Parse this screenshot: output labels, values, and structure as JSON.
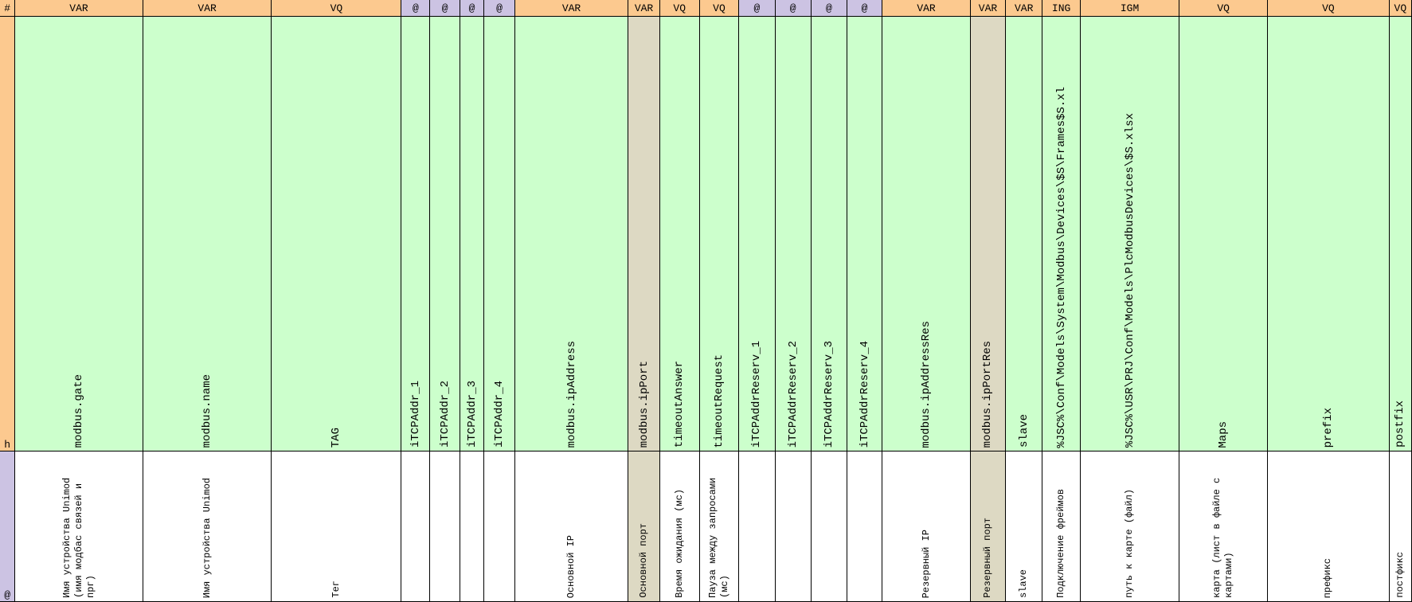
{
  "row_labels": [
    "#",
    "h",
    "@"
  ],
  "columns": [
    {
      "type": "VAR",
      "field": "modbus.gate",
      "description": "Имя устройства Unimod (имя модбас связей и прг)"
    },
    {
      "type": "VAR",
      "field": "modbus.name",
      "description": "Имя устройства Unimod"
    },
    {
      "type": "VQ",
      "field": "TAG",
      "description": "Тег"
    },
    {
      "type": "@",
      "field": "iTCPAddr_1"
    },
    {
      "type": "@",
      "field": "iTCPAddr_2"
    },
    {
      "type": "@",
      "field": "iTCPAddr_3"
    },
    {
      "type": "@",
      "field": "iTCPAddr_4"
    },
    {
      "type": "VAR",
      "field": "modbus.ipAddress",
      "description": "Основной IP"
    },
    {
      "type": "VAR",
      "field": "modbus.ipPort",
      "description": "Основной порт",
      "fill": "#ddd9c3"
    },
    {
      "type": "VQ",
      "field": "timeoutAnswer",
      "description": "Время ожидания (мс)"
    },
    {
      "type": "VQ",
      "field": "timeoutRequest",
      "description": "Пауза между запросами (мс)"
    },
    {
      "type": "@",
      "field": "iTCPAddrReserv_1"
    },
    {
      "type": "@",
      "field": "iTCPAddrReserv_2"
    },
    {
      "type": "@",
      "field": "iTCPAddrReserv_3"
    },
    {
      "type": "@",
      "field": "iTCPAddrReserv_4"
    },
    {
      "type": "VAR",
      "field": "modbus.ipAddressRes",
      "description": "Резервный IP"
    },
    {
      "type": "VAR",
      "field": "modbus.ipPortRes",
      "description": "Резервный порт",
      "fill": "#ddd9c3"
    },
    {
      "type": "VAR",
      "field": "slave",
      "description": "slave"
    },
    {
      "type": "ING",
      "field": "%JSC%\\Conf\\Models\\System\\Modbus\\Devices\\$S\\Frames$S.xl",
      "description": "Подключение фреймов"
    },
    {
      "type": "IGM",
      "field": "%JSC%\\USR\\PRJ\\Conf\\Models\\PlcModbusDevices\\$S.xlsx",
      "description": "путь к карте (файл)"
    },
    {
      "type": "VQ",
      "field": "Maps",
      "description": "карта (лист в файле с картами)"
    },
    {
      "type": "VQ",
      "field": "prefix",
      "description": "префикс"
    },
    {
      "type": "VQ",
      "field": "postfix",
      "description": "постфикс"
    }
  ]
}
